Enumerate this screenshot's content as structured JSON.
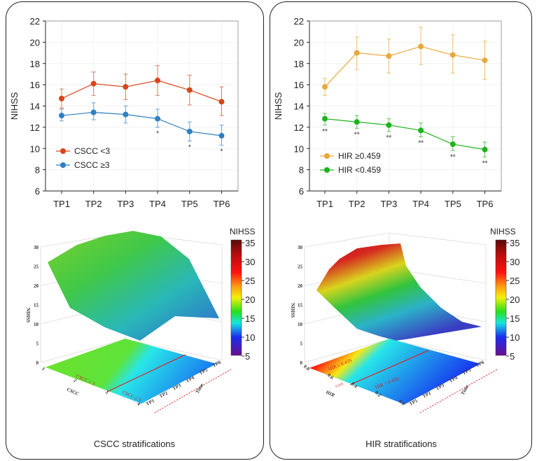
{
  "panels": [
    {
      "caption": "CSCC stratifications"
    },
    {
      "caption": "HIR stratifications"
    }
  ],
  "chart_data": [
    {
      "type": "line",
      "title": "",
      "xlabel": "",
      "ylabel": "NIHSS",
      "categories": [
        "TP1",
        "TP2",
        "TP3",
        "TP4",
        "TP5",
        "TP6"
      ],
      "ylim": [
        6,
        22
      ],
      "yticks": [
        6,
        8,
        10,
        12,
        14,
        16,
        18,
        20,
        22
      ],
      "grid": true,
      "legend_position": "bottom-left",
      "series": [
        {
          "name": "CSCC <3",
          "color": "#d9441c",
          "values": [
            14.7,
            16.1,
            15.8,
            16.4,
            15.5,
            14.4
          ],
          "err_low": [
            13.8,
            15.0,
            14.6,
            15.0,
            14.1,
            13.1
          ],
          "err_high": [
            15.6,
            17.2,
            17.0,
            17.8,
            16.9,
            15.8
          ],
          "marks": [
            "",
            "",
            "",
            "",
            "",
            ""
          ]
        },
        {
          "name": "CSCC ≥3",
          "color": "#2f7fc1",
          "values": [
            13.1,
            13.4,
            13.2,
            12.8,
            11.6,
            11.2
          ],
          "err_low": [
            12.6,
            12.7,
            12.4,
            12.0,
            10.7,
            10.3
          ],
          "err_high": [
            13.7,
            14.3,
            14.0,
            13.7,
            12.5,
            12.2
          ],
          "marks": [
            "",
            "",
            "",
            "*",
            "*",
            "*"
          ]
        }
      ]
    },
    {
      "type": "line",
      "title": "",
      "xlabel": "",
      "ylabel": "NIHSS",
      "categories": [
        "TP1",
        "TP2",
        "TP3",
        "TP4",
        "TP5",
        "TP6"
      ],
      "ylim": [
        6,
        22
      ],
      "yticks": [
        6,
        8,
        10,
        12,
        14,
        16,
        18,
        20,
        22
      ],
      "grid": true,
      "legend_position": "bottom-left",
      "series": [
        {
          "name": "HIR ≥0.459",
          "color": "#e8a93a",
          "values": [
            15.8,
            19.0,
            18.7,
            19.6,
            18.8,
            18.3
          ],
          "err_low": [
            15.0,
            17.4,
            17.1,
            17.9,
            17.1,
            16.5
          ],
          "err_high": [
            16.6,
            20.5,
            20.3,
            21.4,
            20.7,
            20.1
          ],
          "marks": [
            "",
            "",
            "",
            "",
            "",
            ""
          ]
        },
        {
          "name": "HIR <0.459",
          "color": "#1db31d",
          "values": [
            12.8,
            12.5,
            12.2,
            11.7,
            10.4,
            9.9
          ],
          "err_low": [
            12.2,
            11.9,
            11.6,
            11.1,
            9.8,
            9.2
          ],
          "err_high": [
            13.3,
            13.1,
            12.8,
            12.4,
            11.1,
            10.6
          ],
          "marks": [
            "**",
            "**",
            "**",
            "**",
            "**",
            "**"
          ]
        }
      ]
    }
  ],
  "surface3d": [
    {
      "zlabel": "NIHSS",
      "xlabel": "CSCC",
      "ylabel": "Time",
      "zticks": [
        "0",
        "5",
        "10",
        "15",
        "20",
        "25",
        "30"
      ],
      "time_ticks": [
        "TP1",
        "TP2",
        "TP3",
        "TP4",
        "TP5",
        "TP6"
      ],
      "group_ticks": [
        "1",
        "2",
        "3",
        "4"
      ],
      "region_labels": [
        "CSCC < 3",
        "CSCC ≥ 3"
      ],
      "colorbar": {
        "title": "NIHSS",
        "ticks": [
          "35",
          "30",
          "25",
          "20",
          "15",
          "10",
          "5"
        ]
      }
    },
    {
      "zlabel": "NIHSS",
      "xlabel": "HIR",
      "ylabel": "Time",
      "zticks": [
        "0",
        "5",
        "10",
        "15",
        "20",
        "25",
        "30"
      ],
      "time_ticks": [
        "TP1",
        "TP2",
        "TP3",
        "TP4",
        "TP5",
        "TP6"
      ],
      "group_ticks": [
        "0.8",
        "0.6",
        "0.4",
        "0.2",
        "0.0"
      ],
      "threshold_tick": "0.459",
      "region_labels": [
        "HIR ≥ 0.459",
        "HIR < 0.459"
      ],
      "colorbar": {
        "title": "NIHSS",
        "ticks": [
          "35",
          "30",
          "25",
          "20",
          "15",
          "10",
          "5"
        ]
      }
    }
  ]
}
